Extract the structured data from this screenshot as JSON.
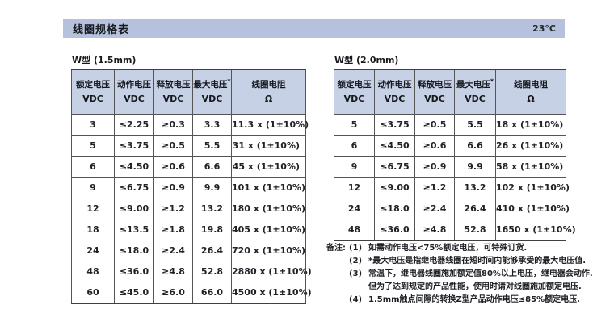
{
  "page": {
    "title": "线圈规格表",
    "temperature": "23°C"
  },
  "colors": {
    "page_bg": "#ffffff",
    "title_bar_bg": "#b6c2dd",
    "header_cell_bg": "#c6d1e6",
    "border_dark": "#3f3f3f",
    "border": "#545454",
    "text": "#1c1c1c"
  },
  "tables": [
    {
      "title": "W型 (1.5mm)",
      "headers": [
        [
          "额定电压",
          "VDC"
        ],
        [
          "动作电压",
          "VDC"
        ],
        [
          "释放电压",
          "VDC"
        ],
        [
          "最大电压*",
          "VDC"
        ],
        [
          "线圈电阻",
          "Ω"
        ]
      ],
      "rows": [
        [
          "3",
          "≤2.25",
          "≥0.3",
          "3.3",
          "11.3 x (1±10%)"
        ],
        [
          "5",
          "≤3.75",
          "≥0.5",
          "5.5",
          "31 x (1±10%)"
        ],
        [
          "6",
          "≤4.50",
          "≥0.6",
          "6.6",
          "45 x (1±10%)"
        ],
        [
          "9",
          "≤6.75",
          "≥0.9",
          "9.9",
          "101 x (1±10%)"
        ],
        [
          "12",
          "≤9.00",
          "≥1.2",
          "13.2",
          "180 x (1±10%)"
        ],
        [
          "18",
          "≤13.5",
          "≥1.8",
          "19.8",
          "405 x (1±10%)"
        ],
        [
          "24",
          "≤18.0",
          "≥2.4",
          "26.4",
          "720 x (1±10%)"
        ],
        [
          "48",
          "≤36.0",
          "≥4.8",
          "52.8",
          "2880 x (1±10%)"
        ],
        [
          "60",
          "≤45.0",
          "≥6.0",
          "66.0",
          "4500 x (1±10%)"
        ]
      ]
    },
    {
      "title": "W型 (2.0mm)",
      "headers": [
        [
          "额定电压",
          "VDC"
        ],
        [
          "动作电压",
          "VDC"
        ],
        [
          "释放电压",
          "VDC"
        ],
        [
          "最大电压*",
          "VDC"
        ],
        [
          "线圈电阻",
          "Ω"
        ]
      ],
      "rows": [
        [
          "5",
          "≤3.75",
          "≥0.5",
          "5.5",
          "18 x (1±10%)"
        ],
        [
          "6",
          "≤4.50",
          "≥0.6",
          "6.6",
          "26 x (1±10%)"
        ],
        [
          "9",
          "≤6.75",
          "≥0.9",
          "9.9",
          "58 x (1±10%)"
        ],
        [
          "12",
          "≤9.00",
          "≥1.2",
          "13.2",
          "102 x (1±10%)"
        ],
        [
          "24",
          "≤18.0",
          "≥2.4",
          "26.4",
          "410 x (1±10%)"
        ],
        [
          "48",
          "≤36.0",
          "≥4.8",
          "52.8",
          "1650 x (1±10%)"
        ]
      ]
    }
  ],
  "notes": {
    "label": "备注:",
    "items": [
      {
        "num": "(1)",
        "lines": [
          "如需动作电压<75%额定电压，可特殊订货."
        ]
      },
      {
        "num": "(2)",
        "lines": [
          "*最大电压是指继电器线圈在短时间内能够承受的最大电压值."
        ]
      },
      {
        "num": "(3)",
        "lines": [
          "常温下，继电器线圈施加额定值80%以上电压，继电器会动作.",
          "但为了达到规定的产品性能，使用时请对线圈施加额定电压."
        ]
      },
      {
        "num": "(4)",
        "lines": [
          "1.5mm触点间隙的转换Z型产品动作电压≤85%额定电压."
        ]
      }
    ]
  }
}
